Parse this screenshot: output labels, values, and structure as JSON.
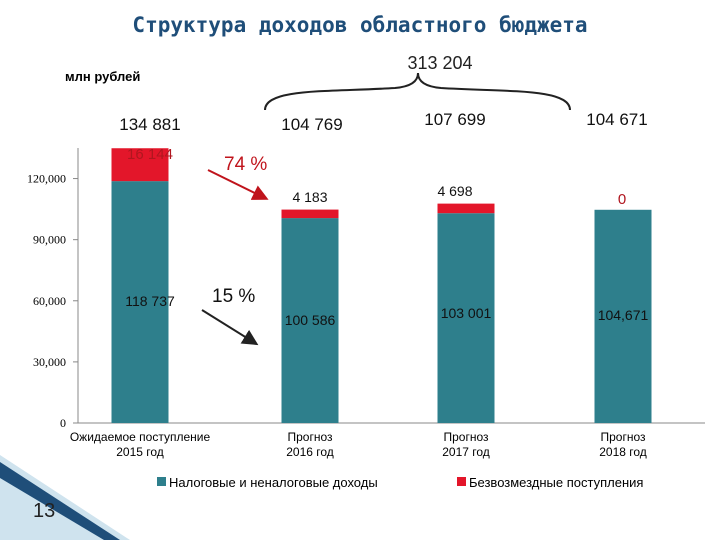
{
  "page": {
    "title": "Структура доходов областного бюджета",
    "unit_label": "млн рублей",
    "grand_total": "313 204",
    "page_number": "13",
    "annotations": {
      "grant_growth": "74 %",
      "tax_growth": "15 %"
    }
  },
  "colors": {
    "tax": "#2e7f8c",
    "grants": "#e3162a",
    "arrow": "#c0141c"
  },
  "chart_data": {
    "type": "bar",
    "stacked": true,
    "categories": [
      "Ожидаемое поступление 2015 год",
      "Прогноз 2016 год",
      "Прогноз 2017 год",
      "Прогноз 2018 год"
    ],
    "category_lines": [
      [
        "Ожидаемое поступление",
        "2015 год"
      ],
      [
        "Прогноз",
        "2016 год"
      ],
      [
        "Прогноз",
        "2017 год"
      ],
      [
        "Прогноз",
        "2018 год"
      ]
    ],
    "series": [
      {
        "name": "Налоговые и неналоговые доходы",
        "values": [
          118737,
          100586,
          103001,
          104671
        ],
        "labels": [
          "118 737",
          "100 586",
          "103 001",
          "104,671"
        ]
      },
      {
        "name": "Безвозмездные поступления",
        "values": [
          16144,
          4183,
          4698,
          0
        ],
        "labels": [
          "16 144",
          "4 183",
          "4 698",
          "0"
        ]
      }
    ],
    "totals": [
      "134 881",
      "104 769",
      "107 699",
      "104 671"
    ],
    "yticks": [
      "0",
      "30,000",
      "60,000",
      "90,000",
      "120,000"
    ],
    "ylim": [
      0,
      135000
    ],
    "grid": false,
    "legend": "bottom"
  }
}
